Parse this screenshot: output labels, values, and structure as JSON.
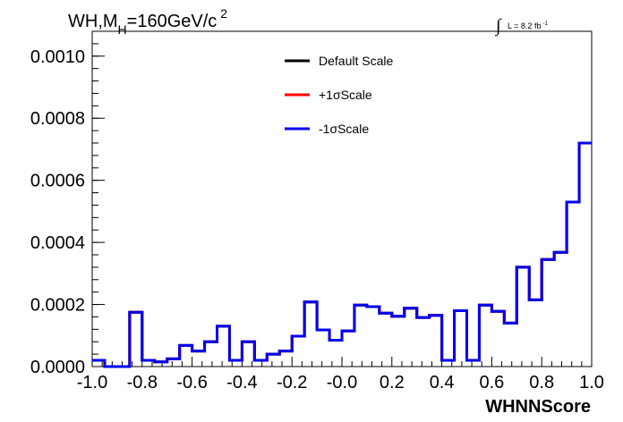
{
  "chart_data": {
    "type": "line",
    "title_main": "WH,M",
    "title_sub": "H",
    "title_tail": "=160GeV/c",
    "title_sup": "2",
    "lumi_text": "L = 8.2 fb",
    "lumi_sup": "-1",
    "xlabel": "WHNNScore",
    "ylabel": "",
    "xlim": [
      -1.0,
      1.0
    ],
    "ylim": [
      0.0,
      0.00108
    ],
    "x_ticks": [
      -1.0,
      -0.8,
      -0.6,
      -0.4,
      -0.2,
      0.0,
      0.2,
      0.4,
      0.6,
      0.8,
      1.0
    ],
    "x_tick_labels": [
      "-1.0",
      "-0.8",
      "-0.6",
      "-0.4",
      "-0.2",
      "-0.0",
      "0.2",
      "0.4",
      "0.6",
      "0.8",
      "1.0"
    ],
    "y_ticks": [
      0.0,
      0.0002,
      0.0004,
      0.0006,
      0.0008,
      0.001
    ],
    "y_tick_labels": [
      "0.0000",
      "0.0002",
      "0.0004",
      "0.0006",
      "0.0008",
      "0.0010"
    ],
    "bin_edges": [
      -1.0,
      -0.95,
      -0.9,
      -0.85,
      -0.8,
      -0.75,
      -0.7,
      -0.65,
      -0.6,
      -0.55,
      -0.5,
      -0.45,
      -0.4,
      -0.35,
      -0.3,
      -0.25,
      -0.2,
      -0.15,
      -0.1,
      -0.05,
      0.0,
      0.05,
      0.1,
      0.15,
      0.2,
      0.25,
      0.3,
      0.35,
      0.4,
      0.45,
      0.5,
      0.55,
      0.6,
      0.65,
      0.7,
      0.75,
      0.8,
      0.85,
      0.9,
      0.95,
      1.0
    ],
    "legend_placement": "top-center",
    "grid": false,
    "series": [
      {
        "name": "Default Scale",
        "color": "#000000",
        "values": [
          2e-05,
          0.0,
          0.0,
          0.000175,
          2e-05,
          1.5e-05,
          2.5e-05,
          6.8e-05,
          5e-05,
          8e-05,
          0.00013,
          2e-05,
          8e-05,
          2e-05,
          4e-05,
          5e-05,
          9.8e-05,
          0.000208,
          0.000118,
          8.5e-05,
          0.000115,
          0.000198,
          0.000193,
          0.000172,
          0.000162,
          0.000188,
          0.000158,
          0.000165,
          2e-05,
          0.00018,
          2e-05,
          0.000198,
          0.000178,
          0.00014,
          0.00032,
          0.000215,
          0.000345,
          0.000368,
          0.00053,
          0.00072
        ]
      },
      {
        "name": "+1σScale",
        "color": "#ff0000",
        "values": [
          2e-05,
          0.0,
          0.0,
          0.000175,
          2e-05,
          1.5e-05,
          2.5e-05,
          6.8e-05,
          5e-05,
          8e-05,
          0.00013,
          2e-05,
          8e-05,
          2e-05,
          4e-05,
          5e-05,
          9.8e-05,
          0.000208,
          0.000118,
          8.5e-05,
          0.000115,
          0.000198,
          0.000193,
          0.000172,
          0.000162,
          0.000188,
          0.000158,
          0.000165,
          2e-05,
          0.00018,
          2e-05,
          0.000198,
          0.000178,
          0.00014,
          0.00032,
          0.000215,
          0.000345,
          0.000368,
          0.00053,
          0.00072
        ]
      },
      {
        "name": "-1σScale",
        "color": "#0000ee",
        "values": [
          2e-05,
          0.0,
          0.0,
          0.000175,
          2e-05,
          1.5e-05,
          2.5e-05,
          6.8e-05,
          5e-05,
          8e-05,
          0.00013,
          2e-05,
          8e-05,
          2e-05,
          4e-05,
          5e-05,
          9.8e-05,
          0.000208,
          0.000118,
          8.5e-05,
          0.000115,
          0.000198,
          0.000193,
          0.000172,
          0.000162,
          0.000188,
          0.000158,
          0.000165,
          2e-05,
          0.00018,
          2e-05,
          0.000198,
          0.000178,
          0.00014,
          0.00032,
          0.000215,
          0.000345,
          0.000368,
          0.00053,
          0.00072
        ]
      }
    ]
  }
}
